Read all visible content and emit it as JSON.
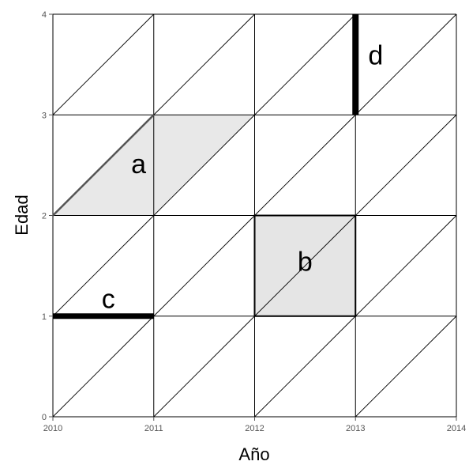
{
  "diagram": {
    "type": "lexis-diagram",
    "x_axis": {
      "label": "Año",
      "ticks": [
        "2010",
        "2011",
        "2012",
        "2013",
        "2014"
      ],
      "range": [
        2010,
        2014
      ]
    },
    "y_axis": {
      "label": "Edad",
      "ticks": [
        "0",
        "1",
        "2",
        "3",
        "4"
      ],
      "range": [
        0,
        4
      ]
    },
    "grid_color": "#000000",
    "regions": [
      {
        "id": "a",
        "label": "a",
        "shape": "parallelogram",
        "fill": "#e8e8e8",
        "corners": [
          [
            2010,
            2
          ],
          [
            2011,
            2
          ],
          [
            2012,
            3
          ],
          [
            2011,
            3
          ]
        ]
      },
      {
        "id": "b",
        "label": "b",
        "shape": "square",
        "fill": "#e5e5e5",
        "x": [
          2012,
          2013
        ],
        "y": [
          1,
          2
        ]
      },
      {
        "id": "c",
        "label": "c",
        "shape": "horizontal-segment",
        "x": [
          2010,
          2011
        ],
        "y": 1
      },
      {
        "id": "d",
        "label": "d",
        "shape": "vertical-segment",
        "x": 2013,
        "y": [
          3,
          4
        ]
      }
    ]
  }
}
